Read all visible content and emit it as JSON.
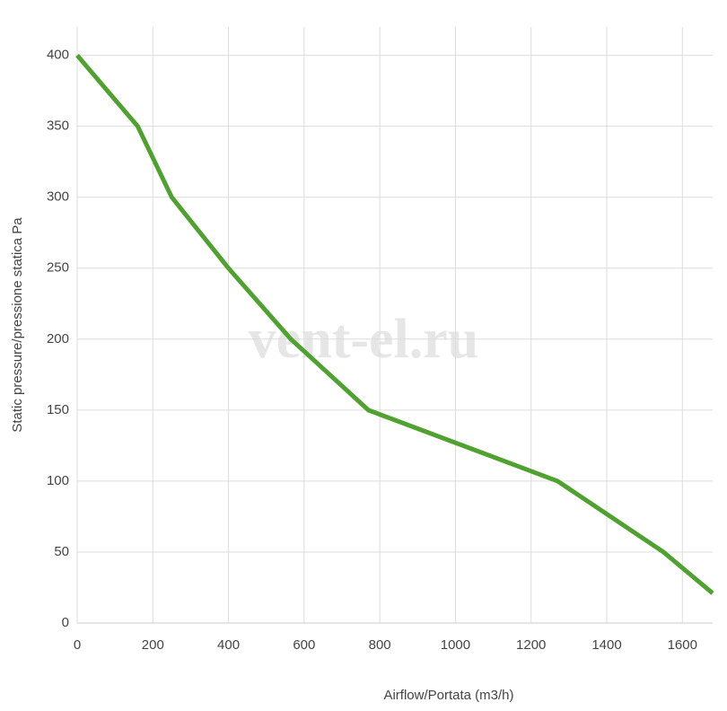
{
  "chart_data": {
    "type": "line",
    "x_label": "Airflow/Portata (m3/h)",
    "y_label": "Static pressure/pressione statica Pa",
    "watermark": "vent-el.ru",
    "x": [
      0,
      160,
      250,
      400,
      565,
      770,
      1270,
      1550,
      1680
    ],
    "series": [
      {
        "color": "#4fa22f",
        "values": [
          400,
          350,
          300,
          250,
          200,
          150,
          100,
          50,
          21
        ]
      }
    ],
    "xlim": [
      0,
      1680
    ],
    "ylim": [
      0,
      420
    ],
    "xticks": [
      0,
      200,
      400,
      600,
      800,
      1000,
      1200,
      1400,
      1600
    ],
    "yticks": [
      0,
      50,
      100,
      150,
      200,
      250,
      300,
      350,
      400
    ],
    "grid": true
  }
}
